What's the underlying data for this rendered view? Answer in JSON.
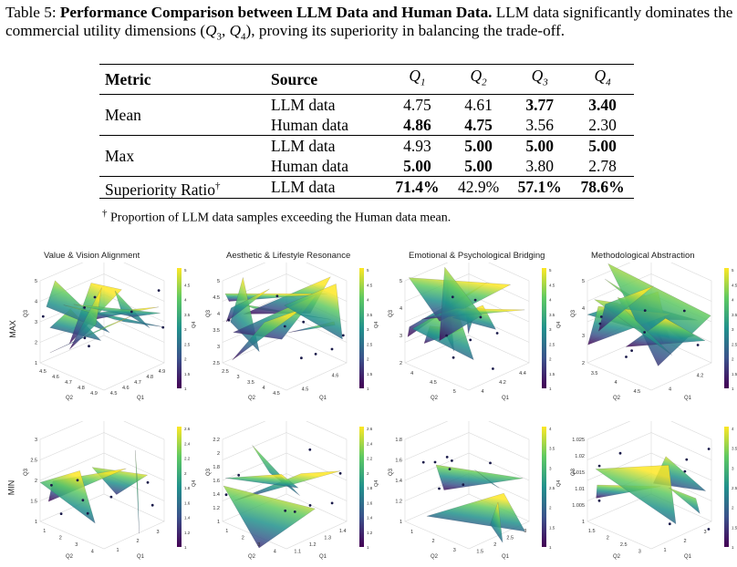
{
  "caption": {
    "label": "Table 5:",
    "title": "Performance Comparison between LLM Data and Human Data.",
    "text_a": "LLM data significantly dominates the commercial utility dimensions (",
    "q3": "Q",
    "q3_sub": "3",
    "sep": ", ",
    "q4": "Q",
    "q4_sub": "4",
    "text_b": "), proving its superiority in balancing the trade-off."
  },
  "table": {
    "headers": [
      "Metric",
      "Source"
    ],
    "q_headers": [
      {
        "sym": "Q",
        "sub": "1"
      },
      {
        "sym": "Q",
        "sub": "2"
      },
      {
        "sym": "Q",
        "sub": "3"
      },
      {
        "sym": "Q",
        "sub": "4"
      }
    ],
    "rows": [
      {
        "metric": "Mean",
        "source": "LLM data",
        "values": [
          "4.75",
          "4.61",
          "3.77",
          "3.40"
        ],
        "bold": [
          false,
          false,
          true,
          true
        ]
      },
      {
        "metric": "",
        "source": "Human data",
        "values": [
          "4.86",
          "4.75",
          "3.56",
          "2.30"
        ],
        "bold": [
          true,
          true,
          false,
          false
        ]
      },
      {
        "metric": "Max",
        "source": "LLM data",
        "values": [
          "4.93",
          "5.00",
          "5.00",
          "5.00"
        ],
        "bold": [
          false,
          true,
          true,
          true
        ]
      },
      {
        "metric": "",
        "source": "Human data",
        "values": [
          "5.00",
          "5.00",
          "3.80",
          "2.78"
        ],
        "bold": [
          true,
          true,
          false,
          false
        ]
      },
      {
        "metric": "Superiority Ratio",
        "metric_sup": "†",
        "source": "LLM data",
        "values": [
          "71.4%",
          "42.9%",
          "57.1%",
          "78.6%"
        ],
        "bold": [
          true,
          false,
          true,
          true
        ]
      }
    ],
    "footnote_mark": "†",
    "footnote": " Proportion of LLM data samples exceeding the Human data mean."
  },
  "figure": {
    "columns": [
      "Value & Vision Alignment",
      "Aesthetic & Lifestyle Resonance",
      "Emotional & Psychological Bridging",
      "Methodological Abstraction"
    ],
    "rows": [
      "MAX",
      "MIN"
    ],
    "axis_labels": {
      "x": "Q1",
      "y": "Q2",
      "z": "Q3",
      "color": "Q4"
    },
    "colorscale": [
      "#440154",
      "#3b528b",
      "#21918c",
      "#5ec962",
      "#fde725"
    ],
    "panels": [
      {
        "row": "MAX",
        "col": 0,
        "x_ticks": [
          "4.5",
          "4.6",
          "4.7",
          "4.8",
          "4.9"
        ],
        "y_ticks": [
          "4.5",
          "4.6",
          "4.7",
          "4.8",
          "4.9"
        ],
        "z_ticks": [
          "5",
          "4",
          "3",
          "2",
          "1"
        ],
        "cb_ticks": [
          "5",
          "4.5",
          "4",
          "3.5",
          "3",
          "2.5",
          "2",
          "1.5",
          "1"
        ]
      },
      {
        "row": "MAX",
        "col": 1,
        "x_ticks": [
          "4.5",
          "4.6"
        ],
        "y_ticks": [
          "2.5",
          "3",
          "3.5",
          "4",
          "4.5"
        ],
        "z_ticks": [
          "5",
          "4.5",
          "4",
          "3.5",
          "3",
          "2.5"
        ],
        "cb_ticks": [
          "5",
          "4.5",
          "4",
          "3.5",
          "3",
          "2.5",
          "2",
          "1.5",
          "1"
        ]
      },
      {
        "row": "MAX",
        "col": 2,
        "x_ticks": [
          "4",
          "4.2",
          "4.4"
        ],
        "y_ticks": [
          "4",
          "4.5",
          "5"
        ],
        "z_ticks": [
          "5",
          "4",
          "3",
          "2"
        ],
        "cb_ticks": [
          "5",
          "4.5",
          "4",
          "3.5",
          "3",
          "2.5",
          "2",
          "1.5",
          "1"
        ]
      },
      {
        "row": "MAX",
        "col": 3,
        "x_ticks": [
          "4",
          "4.2"
        ],
        "y_ticks": [
          "3.5",
          "4",
          "4.5"
        ],
        "z_ticks": [
          "5",
          "4",
          "3",
          "2"
        ],
        "cb_ticks": [
          "5",
          "4.5",
          "4",
          "3.5",
          "3",
          "2.5",
          "2",
          "1.5",
          "1"
        ]
      },
      {
        "row": "MIN",
        "col": 0,
        "x_ticks": [
          "1",
          "2",
          "3"
        ],
        "y_ticks": [
          "1",
          "2",
          "3",
          "4"
        ],
        "z_ticks": [
          "3",
          "2.5",
          "2",
          "1.5",
          "1"
        ],
        "cb_ticks": [
          "2.6",
          "2.4",
          "2.2",
          "2",
          "1.8",
          "1.6",
          "1.4",
          "1.2",
          "1"
        ]
      },
      {
        "row": "MIN",
        "col": 1,
        "x_ticks": [
          "1.1",
          "1.2",
          "1.3",
          "1.4"
        ],
        "y_ticks": [
          "1",
          "2",
          "3",
          "4"
        ],
        "z_ticks": [
          "2.2",
          "2",
          "1.8",
          "1.6",
          "1.4",
          "1.2",
          "1"
        ],
        "cb_ticks": [
          "2.6",
          "2.4",
          "2.2",
          "2",
          "1.8",
          "1.6",
          "1.4",
          "1.2",
          "1"
        ]
      },
      {
        "row": "MIN",
        "col": 2,
        "x_ticks": [
          "1.5",
          "2",
          "2.5",
          "3"
        ],
        "y_ticks": [
          "1",
          "2",
          "3"
        ],
        "z_ticks": [
          "1.8",
          "1.6",
          "1.4",
          "1.2",
          "1"
        ],
        "cb_ticks": [
          "4",
          "3.5",
          "3",
          "2.5",
          "2",
          "1.5",
          "1"
        ]
      },
      {
        "row": "MIN",
        "col": 3,
        "x_ticks": [
          "1",
          "2",
          "3"
        ],
        "y_ticks": [
          "1.5",
          "2",
          "2.5",
          "3"
        ],
        "z_ticks": [
          "1.025",
          "1.02",
          "1.015",
          "1.01",
          "1.005",
          "1"
        ],
        "cb_ticks": [
          "4",
          "3.5",
          "3",
          "2.5",
          "2",
          "1.5",
          "1"
        ]
      }
    ]
  }
}
